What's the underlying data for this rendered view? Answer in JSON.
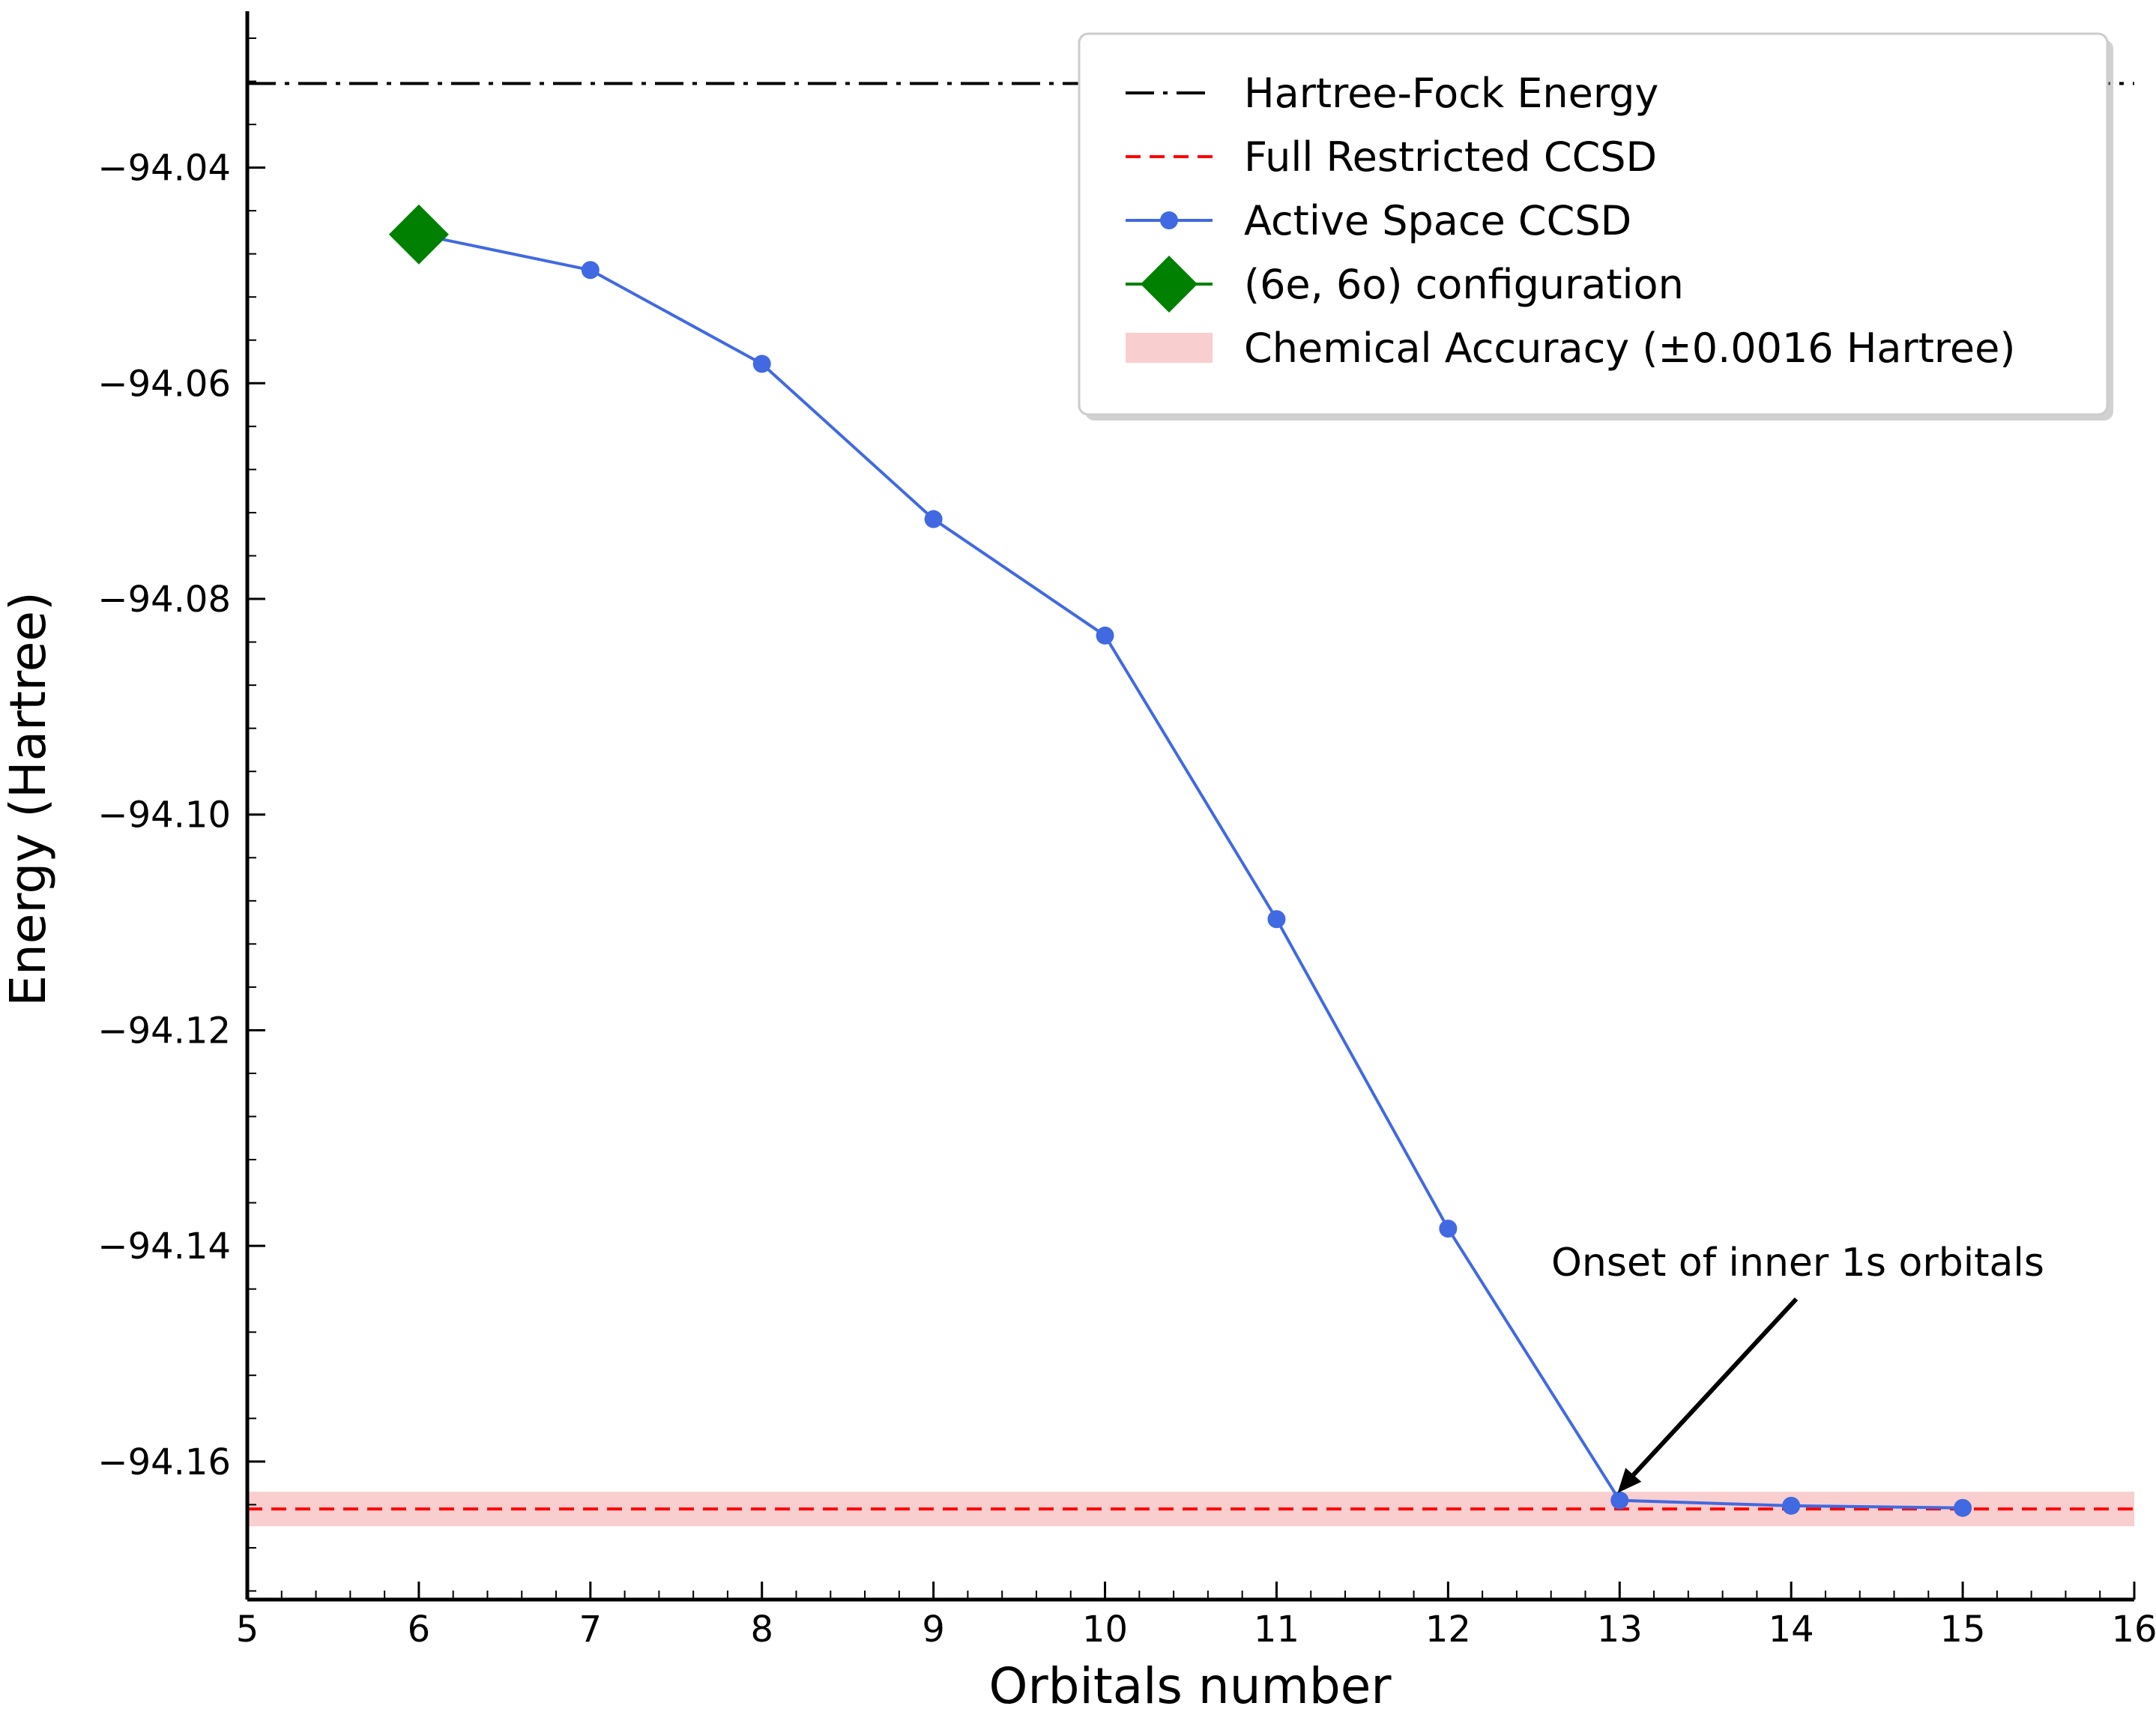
{
  "chart_data": {
    "type": "line",
    "xlabel": "Orbitals number",
    "ylabel": "Energy (Hartree)",
    "xlim": [
      5,
      16
    ],
    "ylim": [
      -94.1728,
      -94.0255
    ],
    "x_ticks": [
      5,
      6,
      7,
      8,
      9,
      10,
      11,
      12,
      13,
      14,
      15,
      16
    ],
    "x_tick_labels": [
      "5",
      "6",
      "7",
      "8",
      "9",
      "10",
      "11",
      "12",
      "13",
      "14",
      "15",
      "16"
    ],
    "y_ticks": [
      -94.04,
      -94.06,
      -94.08,
      -94.1,
      -94.12,
      -94.14,
      -94.16
    ],
    "y_tick_labels": [
      "−94.04",
      "−94.06",
      "−94.08",
      "−94.10",
      "−94.12",
      "−94.14",
      "−94.16"
    ],
    "hartree_fock_energy": -94.0322,
    "full_restricted_ccsd": -94.1644,
    "chemical_accuracy": {
      "center": -94.1644,
      "half_width": 0.0016
    },
    "series": [
      {
        "name": "Active Space CCSD",
        "color": "#4169e1",
        "x": [
          6,
          7,
          8,
          9,
          10,
          11,
          12,
          13,
          14,
          15
        ],
        "y": [
          -94.0462,
          -94.0495,
          -94.0582,
          -94.0726,
          -94.0834,
          -94.1097,
          -94.1384,
          -94.1636,
          -94.1641,
          -94.1643
        ]
      }
    ],
    "highlight_point": {
      "name": "(6e, 6o) configuration",
      "x": 6,
      "y": -94.0462,
      "color": "#008000"
    },
    "legend": {
      "placement": "top-right",
      "entries": [
        "Hartree-Fock Energy",
        "Full Restricted CCSD",
        "Active Space CCSD",
        "(6e, 6o) configuration",
        "Chemical Accuracy (±0.0016 Hartree)"
      ]
    },
    "annotation": {
      "text": "Onset of inner 1s orbitals",
      "target_x": 13,
      "target_y": -94.1636
    },
    "colors": {
      "hartree_fock": "#000000",
      "full_ccsd": "#ff0000",
      "band": "#f4a6a6"
    }
  }
}
